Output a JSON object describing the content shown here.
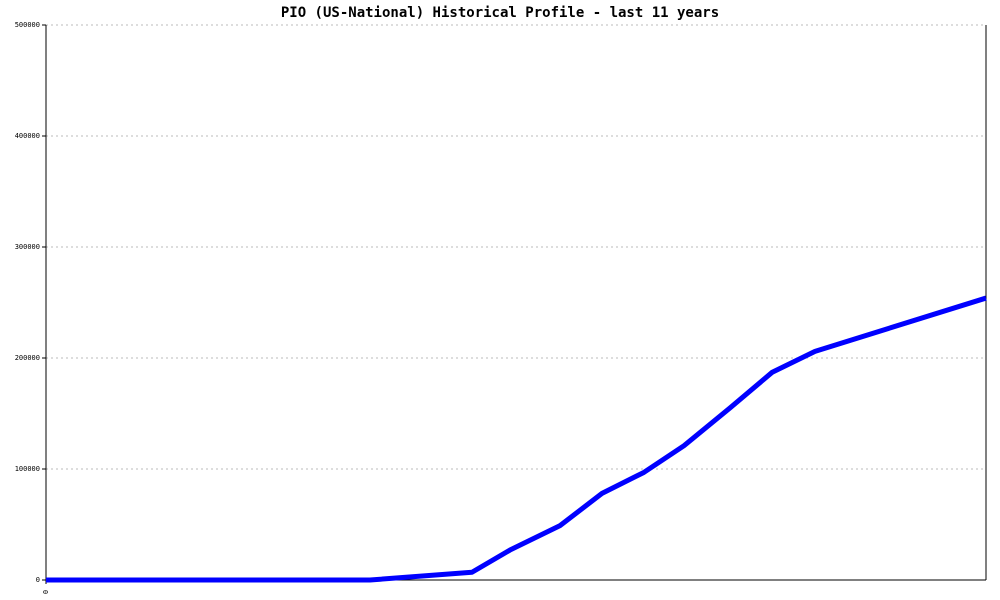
{
  "chart_data": {
    "type": "line",
    "title": "PIO (US-National) Historical Profile - last 11 years",
    "x": [
      0,
      32.4,
      42.6,
      46.4,
      51.4,
      55.6,
      59.8,
      63.8,
      68.4,
      72.6,
      76.9,
      94
    ],
    "series": [
      {
        "color": "#0000ff",
        "values": [
          0,
          0,
          7000,
          27000,
          49000,
          78000,
          97000,
          121000,
          155000,
          187000,
          206000,
          254000
        ]
      }
    ],
    "xlim": [
      0,
      94
    ],
    "xticks": [
      0
    ],
    "ylim": [
      0,
      500000
    ],
    "yticks": [
      0,
      100000,
      200000,
      300000,
      400000,
      500000
    ],
    "grid": true
  }
}
